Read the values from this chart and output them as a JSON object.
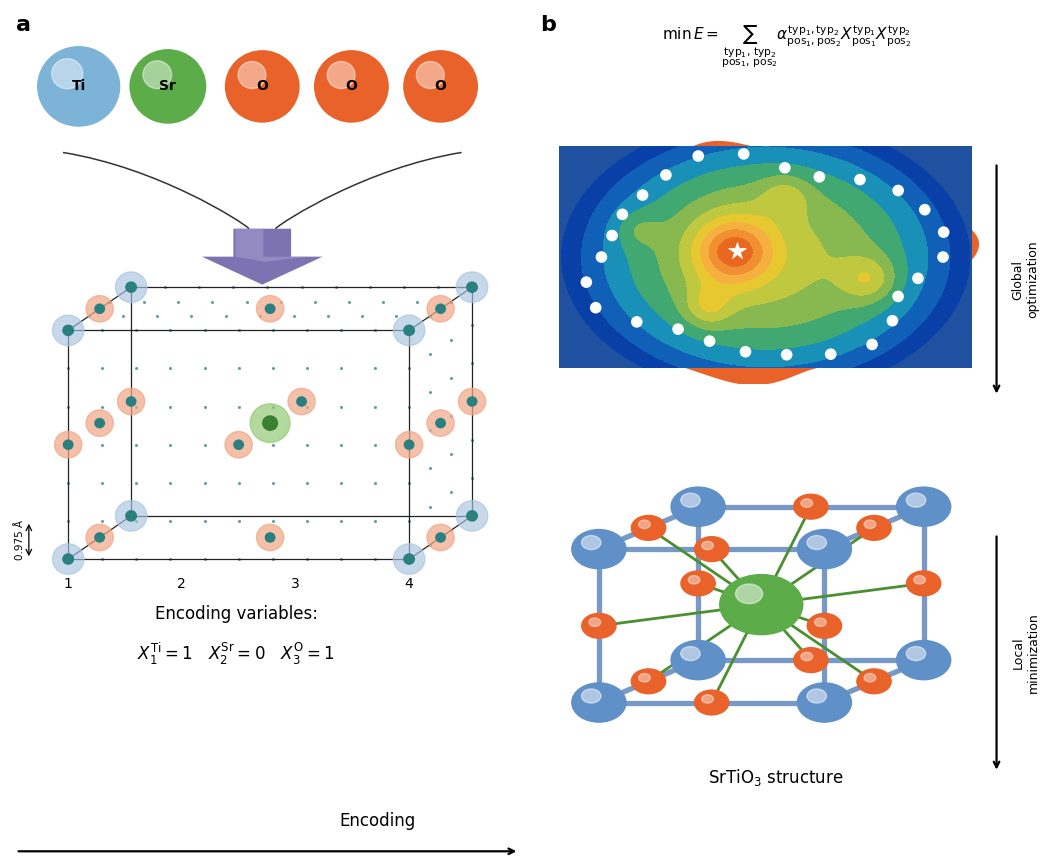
{
  "panel_a_label": "a",
  "panel_b_label": "b",
  "atom_colors": {
    "Ti": "#7EB3D8",
    "Sr": "#5CAD4A",
    "O": "#E8622A"
  },
  "atom_labels": [
    "Ti",
    "Sr",
    "O",
    "O",
    "O"
  ],
  "atom_color_list": [
    "#7EB3D8",
    "#5CAD4A",
    "#E8622A",
    "#E8622A",
    "#E8622A"
  ],
  "arrow_color": "#6B5EA8",
  "arrow_light": "#A89ED0",
  "grid_color": "#2A8080",
  "grid_tick_labels": [
    "1",
    "2",
    "3",
    "4"
  ],
  "dim_label": "0.975 Å",
  "encoding_title": "Encoding variables:",
  "bottom_label": "Encoding",
  "global_opt_label": "Global\noptimization",
  "local_min_label": "Local\nminimization",
  "srtio3_label": "SrTiO$_3$ structure",
  "blue_atom_color": "#6090C8",
  "red_atom_color": "#E8622A",
  "green_atom_color": "#5CAD4A",
  "blue_bar_color": "#7898C8",
  "teal_color": "#2A8080",
  "blue_halo": "#A8C4E0",
  "orange_halo": "#F0A888"
}
